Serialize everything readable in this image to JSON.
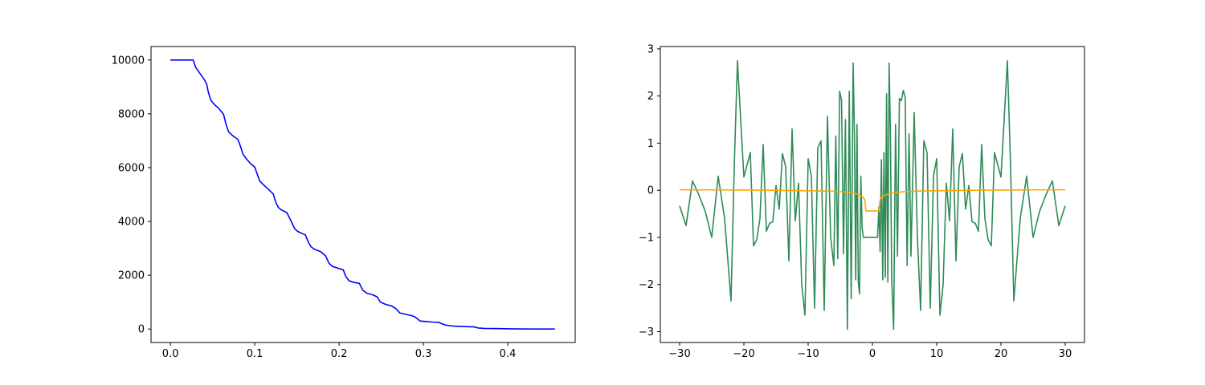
{
  "chart_data": [
    {
      "type": "line",
      "title": "",
      "xlabel": "",
      "ylabel": "",
      "xlim": [
        -0.023,
        0.48
      ],
      "ylim": [
        -500,
        10500
      ],
      "xticks": [
        0.0,
        0.1,
        0.2,
        0.3,
        0.4
      ],
      "xtick_labels": [
        "0.0",
        "0.1",
        "0.2",
        "0.3",
        "0.4"
      ],
      "yticks": [
        0,
        2000,
        4000,
        6000,
        8000,
        10000
      ],
      "ytick_labels": [
        "0",
        "2000",
        "4000",
        "6000",
        "8000",
        "10000"
      ],
      "grid": false,
      "series": [
        {
          "color": "#0000ff",
          "x": [
            0.0,
            0.027,
            0.03,
            0.035,
            0.04,
            0.043,
            0.045,
            0.048,
            0.052,
            0.058,
            0.063,
            0.066,
            0.069,
            0.074,
            0.08,
            0.083,
            0.086,
            0.09,
            0.095,
            0.1,
            0.103,
            0.106,
            0.11,
            0.116,
            0.122,
            0.125,
            0.128,
            0.132,
            0.138,
            0.143,
            0.147,
            0.15,
            0.154,
            0.16,
            0.164,
            0.167,
            0.171,
            0.178,
            0.184,
            0.188,
            0.192,
            0.198,
            0.205,
            0.208,
            0.212,
            0.218,
            0.224,
            0.228,
            0.233,
            0.24,
            0.245,
            0.249,
            0.255,
            0.262,
            0.267,
            0.272,
            0.28,
            0.286,
            0.29,
            0.296,
            0.303,
            0.31,
            0.318,
            0.326,
            0.33,
            0.336,
            0.346,
            0.36,
            0.365,
            0.372,
            0.39,
            0.41,
            0.43,
            0.456
          ],
          "y": [
            10000,
            10000,
            9720,
            9500,
            9280,
            9100,
            8800,
            8500,
            8350,
            8180,
            7980,
            7600,
            7330,
            7180,
            7050,
            6800,
            6500,
            6330,
            6150,
            6020,
            5750,
            5500,
            5370,
            5200,
            5020,
            4700,
            4520,
            4420,
            4330,
            4020,
            3750,
            3650,
            3580,
            3500,
            3200,
            3050,
            2960,
            2880,
            2720,
            2450,
            2330,
            2270,
            2200,
            1950,
            1790,
            1730,
            1700,
            1450,
            1330,
            1270,
            1200,
            1000,
            920,
            860,
            770,
            600,
            540,
            500,
            450,
            300,
            280,
            260,
            250,
            150,
            130,
            110,
            95,
            80,
            40,
            25,
            15,
            5,
            2,
            0
          ]
        }
      ]
    },
    {
      "type": "line",
      "title": "",
      "xlabel": "",
      "ylabel": "",
      "xlim": [
        -33,
        33
      ],
      "ylim": [
        -3.23,
        3.05
      ],
      "xticks": [
        -30,
        -20,
        -10,
        0,
        10,
        20,
        30
      ],
      "xtick_labels": [
        "−30",
        "−20",
        "−10",
        "0",
        "10",
        "20",
        "30"
      ],
      "yticks": [
        -3,
        -2,
        -1,
        0,
        1,
        2,
        3
      ],
      "ytick_labels": [
        "−3",
        "−2",
        "−1",
        "0",
        "1",
        "2",
        "3"
      ],
      "grid": false,
      "series": [
        {
          "color": "#2e8b57",
          "x": [
            -30.0,
            -29.0,
            -28.0,
            -27.0,
            -26.0,
            -25.0,
            -24.0,
            -23.0,
            -22.0,
            -21.5,
            -21.0,
            -20.5,
            -20.0,
            -19.0,
            -18.5,
            -18.0,
            -17.5,
            -17.0,
            -16.5,
            -16.0,
            -15.5,
            -15.0,
            -14.5,
            -14.0,
            -13.5,
            -13.0,
            -12.5,
            -12.0,
            -11.5,
            -11.0,
            -10.5,
            -10.0,
            -9.5,
            -9.0,
            -8.5,
            -8.0,
            -7.5,
            -7.0,
            -6.5,
            -6.0,
            -5.7,
            -5.4,
            -5.1,
            -4.8,
            -4.5,
            -4.2,
            -3.9,
            -3.6,
            -3.3,
            -3.0,
            -2.8,
            -2.6,
            -2.4,
            -2.2,
            -2.0,
            -1.8,
            -1.6,
            -1.4,
            -1.2,
            -1.0,
            -0.8,
            0.8,
            1.0,
            1.2,
            1.4,
            1.6,
            1.8,
            2.0,
            2.2,
            2.4,
            2.6,
            2.8,
            3.0,
            3.3,
            3.6,
            3.9,
            4.2,
            4.5,
            4.8,
            5.1,
            5.4,
            5.7,
            6.0,
            6.5,
            7.0,
            7.5,
            8.0,
            8.5,
            9.0,
            9.5,
            10.0,
            10.5,
            11.0,
            11.5,
            12.0,
            12.5,
            13.0,
            13.5,
            14.0,
            14.5,
            15.0,
            15.5,
            16.0,
            16.5,
            17.0,
            17.5,
            18.0,
            18.5,
            19.0,
            20.0,
            20.5,
            21.0,
            21.5,
            22.0,
            23.0,
            24.0,
            25.0,
            26.0,
            27.0,
            28.0,
            29.0,
            30.0
          ],
          "y": [
            -0.33,
            -0.75,
            0.2,
            -0.1,
            -0.45,
            -1.0,
            0.3,
            -0.6,
            -2.35,
            0.5,
            2.75,
            1.5,
            0.28,
            0.8,
            -1.18,
            -1.05,
            -0.6,
            0.97,
            -0.87,
            -0.7,
            -0.67,
            0.1,
            -0.4,
            0.78,
            0.5,
            -1.5,
            1.3,
            -0.65,
            0.15,
            -2.0,
            -2.65,
            0.67,
            0.3,
            -2.5,
            0.9,
            1.05,
            -2.55,
            1.57,
            -1.0,
            -1.6,
            1.15,
            -1.45,
            2.1,
            1.9,
            -1.35,
            1.5,
            -2.95,
            2.1,
            -2.3,
            2.7,
            1.2,
            -1.9,
            1.4,
            -1.95,
            -2.2,
            0.3,
            -0.8,
            -1.0,
            -1.0,
            -1.0,
            -1.0,
            -1.0,
            -0.35,
            -1.3,
            0.65,
            -1.9,
            0.8,
            -1.85,
            2.05,
            -1.95,
            2.7,
            1.2,
            -1.9,
            -2.95,
            1.4,
            -1.4,
            1.95,
            1.9,
            2.12,
            1.97,
            -1.6,
            1.2,
            -1.4,
            1.65,
            -1.0,
            -2.55,
            1.05,
            0.8,
            -2.5,
            0.3,
            0.67,
            -2.65,
            -2.0,
            0.15,
            -0.65,
            1.3,
            -1.5,
            0.5,
            0.78,
            -0.4,
            0.1,
            -0.67,
            -0.7,
            -0.87,
            0.97,
            -0.6,
            -1.05,
            -1.18,
            0.8,
            0.28,
            1.5,
            2.75,
            0.5,
            -2.35,
            -0.6,
            0.3,
            -1.0,
            -0.45,
            -0.1,
            0.2,
            -0.75,
            -0.33
          ]
        },
        {
          "color": "#ffa500",
          "x": [
            -30,
            -25,
            -20,
            -15,
            -10,
            -6,
            -4,
            -3,
            -2.5,
            -2,
            -1.5,
            -1.2,
            -1,
            0,
            1,
            1.2,
            1.5,
            2,
            2.5,
            3,
            4,
            6,
            10,
            15,
            20,
            25,
            30
          ],
          "y": [
            0.01,
            0.008,
            0.005,
            0.0,
            -0.01,
            -0.02,
            -0.04,
            -0.06,
            -0.08,
            -0.1,
            -0.14,
            -0.2,
            -0.44,
            -0.44,
            -0.44,
            -0.2,
            -0.14,
            -0.1,
            -0.08,
            -0.06,
            -0.04,
            -0.02,
            -0.01,
            0.0,
            0.005,
            0.008,
            0.01
          ]
        }
      ]
    }
  ]
}
